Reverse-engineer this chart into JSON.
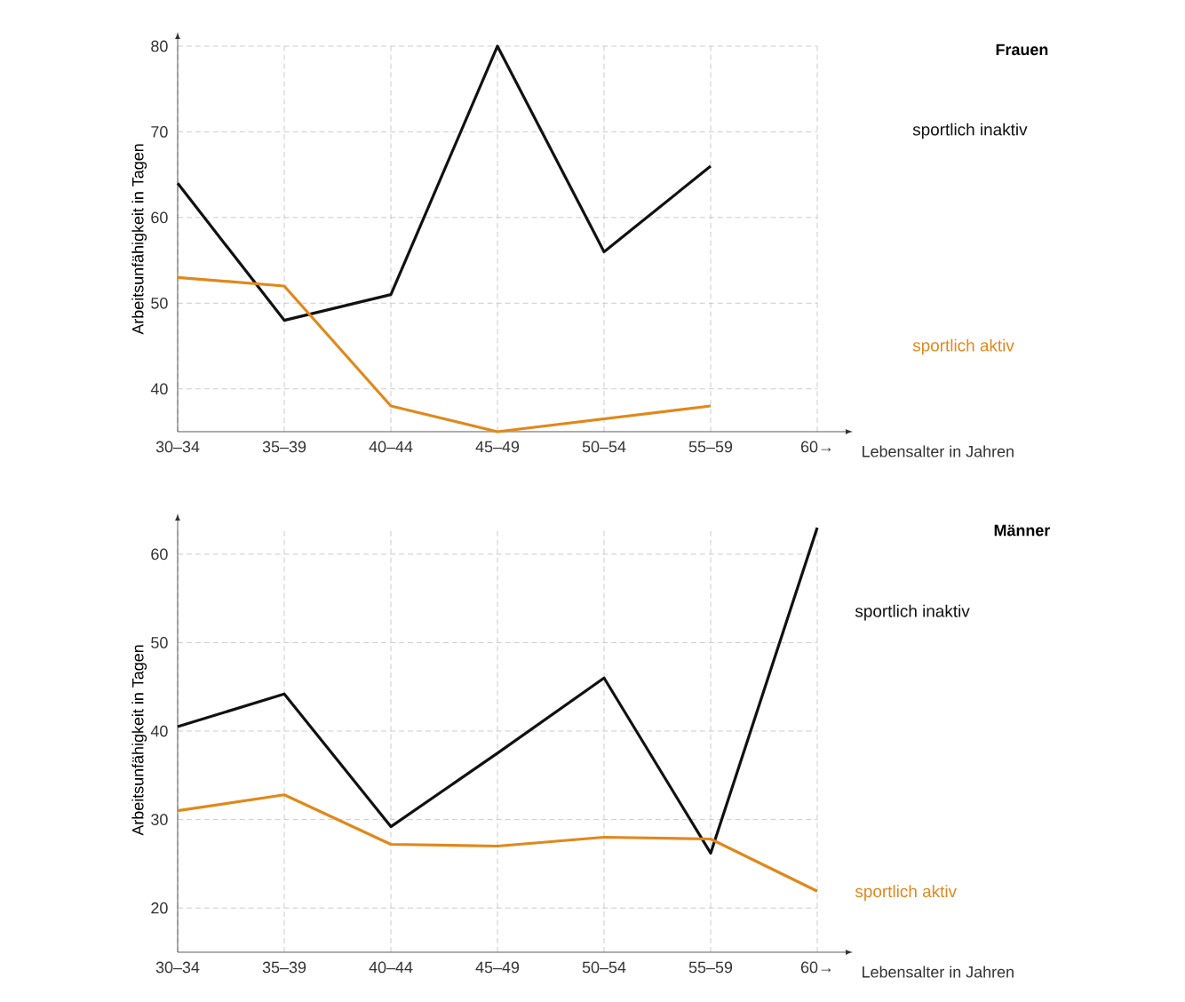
{
  "chart_data": [
    {
      "type": "line",
      "annotations": [
        "Frauen"
      ],
      "xlabel": "Lebensalter in Jahren",
      "ylabel": "Arbeitsunfähigkeit in Tagen",
      "categories": [
        "30–34",
        "35–39",
        "40–44",
        "45–49",
        "50–54",
        "55–59",
        "60→"
      ],
      "series": [
        {
          "name": "sportlich inaktiv",
          "color": "#111111",
          "values": [
            64,
            48,
            51,
            80,
            56,
            66,
            null
          ]
        },
        {
          "name": "sportlich aktiv",
          "color": "#e0881c",
          "values": [
            53,
            52,
            38,
            35,
            36.5,
            38,
            null
          ]
        }
      ],
      "ylim": [
        35,
        80
      ],
      "yticks": [
        40,
        50,
        60,
        70,
        80
      ],
      "grid": true,
      "legend": false
    },
    {
      "type": "line",
      "annotations": [
        "Männer"
      ],
      "xlabel": "Lebensalter in Jahren",
      "ylabel": "Arbeitsunfähigkeit in Tagen",
      "categories": [
        "30–34",
        "35–39",
        "40–44",
        "45–49",
        "50–54",
        "55–59",
        "60→"
      ],
      "series": [
        {
          "name": "sportlich inaktiv",
          "color": "#111111",
          "values": [
            40.5,
            44.2,
            29.2,
            37.5,
            46,
            26.2,
            63
          ]
        },
        {
          "name": "sportlich aktiv",
          "color": "#e0881c",
          "values": [
            31,
            32.8,
            27.2,
            27,
            28,
            27.8,
            21.9
          ]
        }
      ],
      "ylim": [
        15,
        63
      ],
      "yticks": [
        20,
        30,
        40,
        50,
        60
      ],
      "grid": true,
      "legend": false
    }
  ]
}
